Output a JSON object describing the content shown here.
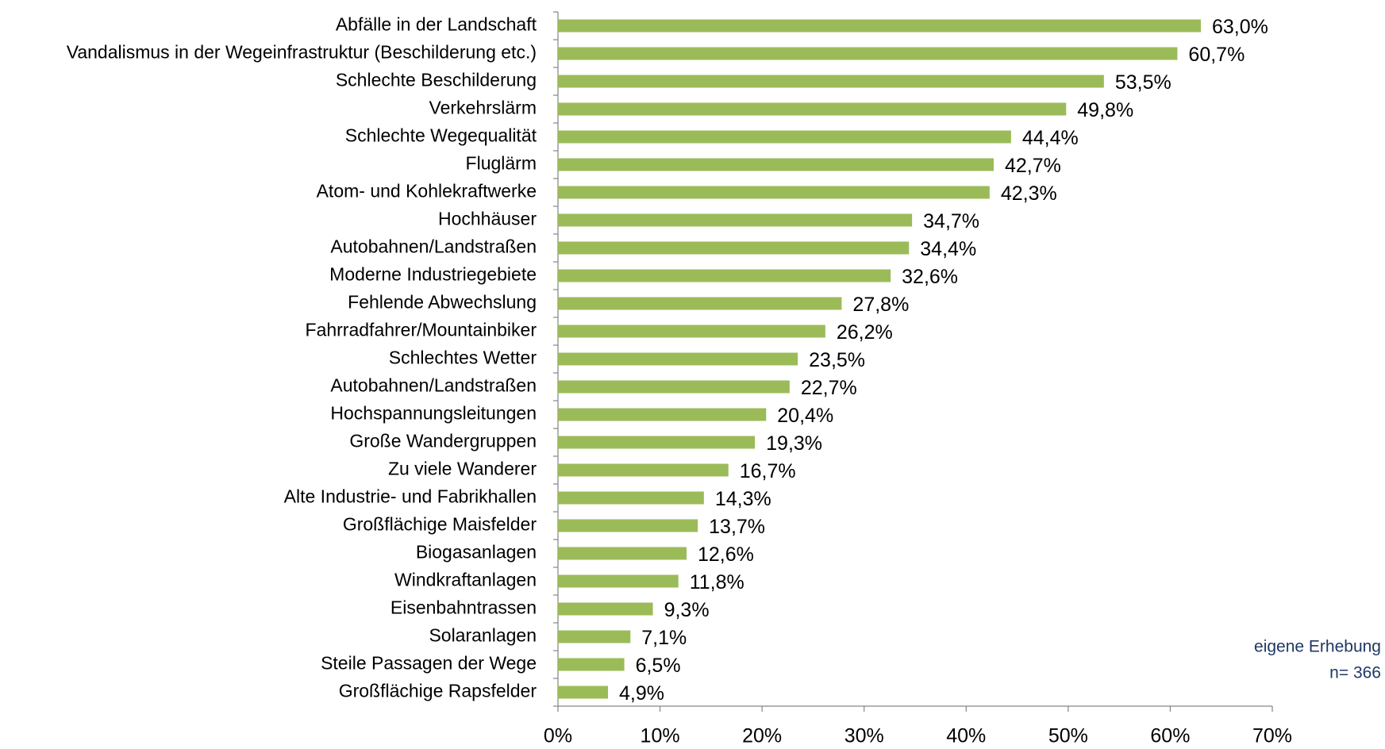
{
  "chart_data": {
    "type": "bar",
    "orientation": "horizontal",
    "color": "#9bbb59",
    "categories": [
      "Abfälle in der Landschaft",
      "Vandalismus in der Wegeinfrastruktur (Beschilderung etc.)",
      "Schlechte Beschilderung",
      "Verkehrslärm",
      "Schlechte Wegequalität",
      "Fluglärm",
      "Atom- und Kohlekraftwerke",
      "Hochhäuser",
      "Autobahnen/Landstraßen",
      "Moderne Industriegebiete",
      "Fehlende Abwechslung",
      "Fahrradfahrer/Mountainbiker",
      "Schlechtes Wetter",
      "Autobahnen/Landstraßen",
      "Hochspannungsleitungen",
      "Große Wandergruppen",
      "Zu viele Wanderer",
      "Alte Industrie- und Fabrikhallen",
      "Großflächige Maisfelder",
      "Biogasanlagen",
      "Windkraftanlagen",
      "Eisenbahntrassen",
      "Solaranlagen",
      "Steile Passagen der Wege",
      "Großflächige Rapsfelder"
    ],
    "values": [
      63.0,
      60.7,
      53.5,
      49.8,
      44.4,
      42.7,
      42.3,
      34.7,
      34.4,
      32.6,
      27.8,
      26.2,
      23.5,
      22.7,
      20.4,
      19.3,
      16.7,
      14.3,
      13.7,
      12.6,
      11.8,
      9.3,
      7.1,
      6.5,
      4.9
    ],
    "value_labels": [
      "63,0%",
      "60,7%",
      "53,5%",
      "49,8%",
      "44,4%",
      "42,7%",
      "42,3%",
      "34,7%",
      "34,4%",
      "32,6%",
      "27,8%",
      "26,2%",
      "23,5%",
      "22,7%",
      "20,4%",
      "19,3%",
      "16,7%",
      "14,3%",
      "13,7%",
      "12,6%",
      "11,8%",
      "9,3%",
      "7,1%",
      "6,5%",
      "4,9%"
    ],
    "xlim": [
      0,
      70
    ],
    "xticks": [
      {
        "value": 0,
        "label": "0%"
      },
      {
        "value": 10,
        "label": "10%"
      },
      {
        "value": 20,
        "label": "20%"
      },
      {
        "value": 30,
        "label": "30%"
      },
      {
        "value": 40,
        "label": "40%"
      },
      {
        "value": 50,
        "label": "50%"
      },
      {
        "value": 60,
        "label": "60%"
      },
      {
        "value": 70,
        "label": "70%"
      }
    ],
    "annotations": [
      "eigene Erhebung",
      "n= 366"
    ]
  }
}
